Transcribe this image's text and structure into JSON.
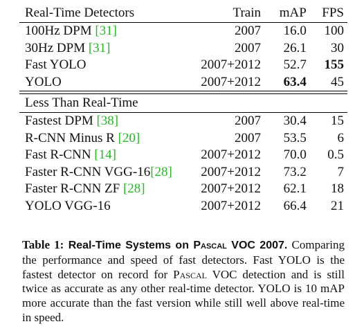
{
  "table": {
    "header": {
      "name": "Real-Time Detectors",
      "train": "Train",
      "map": "mAP",
      "fps": "FPS"
    },
    "realtime_rows": [
      {
        "name": "100Hz DPM ",
        "ref": "[31]",
        "train": "2007",
        "map": "16.0",
        "fps": "100"
      },
      {
        "name": "30Hz DPM ",
        "ref": "[31]",
        "train": "2007",
        "map": "26.1",
        "fps": "30"
      },
      {
        "name": "Fast YOLO",
        "ref": "",
        "train": "2007+2012",
        "map": "52.7",
        "fps": "155"
      },
      {
        "name": "YOLO",
        "ref": "",
        "train": "2007+2012",
        "map": "63.4",
        "fps": "45"
      }
    ],
    "section2_title": "Less Than Real-Time",
    "slow_rows": [
      {
        "name": "Fastest DPM ",
        "ref": "[38]",
        "train": "2007",
        "map": "30.4",
        "fps": "15"
      },
      {
        "name": "R-CNN Minus R ",
        "ref": "[20]",
        "train": "2007",
        "map": "53.5",
        "fps": "6"
      },
      {
        "name": "Fast R-CNN ",
        "ref": "[14]",
        "train": "2007+2012",
        "map": "70.0",
        "fps": "0.5"
      },
      {
        "name": "Faster R-CNN VGG-16",
        "ref": "[28]",
        "train": "2007+2012",
        "map": "73.2",
        "fps": "7"
      },
      {
        "name": "Faster R-CNN ZF ",
        "ref": "[28]",
        "train": "2007+2012",
        "map": "62.1",
        "fps": "18"
      },
      {
        "name": "YOLO VGG-16",
        "ref": "",
        "train": "2007+2012",
        "map": "66.4",
        "fps": "21"
      }
    ]
  },
  "caption": {
    "label": "Table 1:",
    "title_a": " Real-Time Systems on ",
    "title_sc": "Pascal",
    "title_b": " VOC 2007.",
    "body_a": " Comparing the performance and speed of fast detectors. Fast YOLO is the fastest detector on record for ",
    "body_sc": "Pascal",
    "body_b": " VOC detection and is still twice as accurate as any other real-time detector. YOLO is 10 mAP more accurate than the fast version while still well above real-time in speed."
  }
}
